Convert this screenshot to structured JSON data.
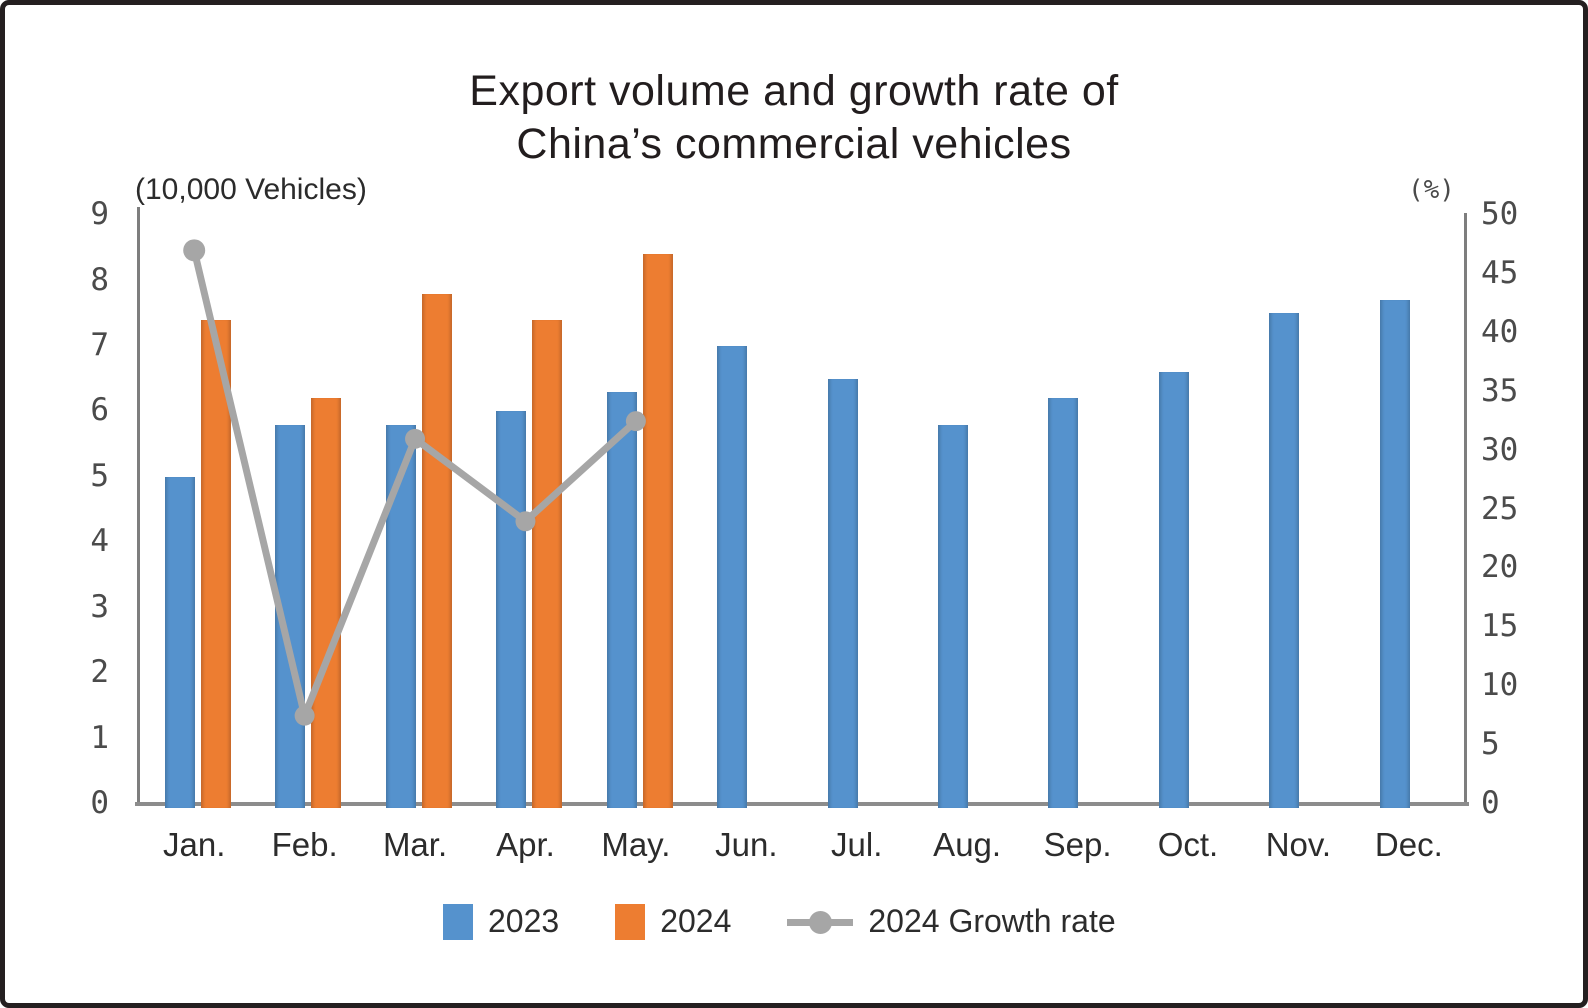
{
  "title": {
    "line1": "Export volume and growth rate of",
    "line2": "China’s commercial vehicles"
  },
  "left_axis": {
    "unit_label": "(10,000 Vehicles)",
    "ticks": [
      0,
      1,
      2,
      3,
      4,
      5,
      6,
      7,
      8,
      9
    ],
    "range": [
      0,
      9
    ]
  },
  "right_axis": {
    "unit_label": "(%)",
    "ticks": [
      0,
      5,
      10,
      15,
      20,
      25,
      30,
      35,
      40,
      45,
      50
    ],
    "range": [
      0,
      50
    ]
  },
  "chart_data": {
    "type": "combo-bar-line",
    "title": "Export volume and growth rate of China’s commercial vehicles",
    "categories": [
      "Jan.",
      "Feb.",
      "Mar.",
      "Apr.",
      "May.",
      "Jun.",
      "Jul.",
      "Aug.",
      "Sep.",
      "Oct.",
      "Nov.",
      "Dec."
    ],
    "series": [
      {
        "name": "2023",
        "type": "bar",
        "axis": "left",
        "color": "#5592CD",
        "values": [
          5.0,
          5.8,
          5.8,
          6.0,
          6.3,
          7.0,
          6.5,
          5.8,
          6.2,
          6.6,
          7.5,
          7.7
        ]
      },
      {
        "name": "2024",
        "type": "bar",
        "axis": "left",
        "color": "#ED7D31",
        "values": [
          7.4,
          6.2,
          7.8,
          7.4,
          8.4,
          null,
          null,
          null,
          null,
          null,
          null,
          null
        ]
      },
      {
        "name": "2024 Growth rate",
        "type": "line",
        "axis": "right",
        "color": "#A6A6A6",
        "values": [
          47,
          7.5,
          31,
          24,
          32.5,
          null,
          null,
          null,
          null,
          null,
          null,
          null
        ]
      }
    ],
    "left_ylabel": "(10,000 Vehicles)",
    "right_ylabel": "(%)",
    "left_ylim": [
      0,
      9
    ],
    "right_ylim": [
      0,
      50
    ],
    "grid": false,
    "legend_position": "bottom"
  },
  "legend": {
    "items": [
      {
        "label": "2023",
        "color": "#5592CD",
        "marker": "square"
      },
      {
        "label": "2024",
        "color": "#ED7D31",
        "marker": "square"
      },
      {
        "label": "2024 Growth rate",
        "color": "#A6A6A6",
        "marker": "line-dot"
      }
    ]
  }
}
